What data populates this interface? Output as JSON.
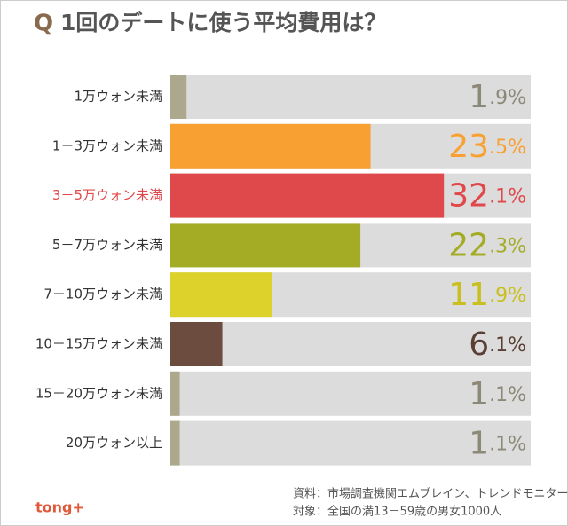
{
  "chart_data": {
    "type": "bar",
    "orientation": "horizontal",
    "title_marker": "Q",
    "title": "1回のデートに使う平均費用は？",
    "categories": [
      "1万ウォン未満",
      "1－3万ウォン未満",
      "3－5万ウォン未満",
      "5－7万ウォン未満",
      "7－10万ウォン未満",
      "10－15万ウォン未満",
      "15－20万ウォン未満",
      "20万ウォン以上"
    ],
    "values": [
      1.9,
      23.5,
      32.1,
      22.3,
      11.9,
      6.1,
      1.1,
      1.1
    ],
    "value_labels": [
      "1.9%",
      "23.5%",
      "32.1%",
      "22.3%",
      "11.9%",
      "6.1%",
      "1.1%",
      "1.1%"
    ],
    "colors": [
      "#aca88e",
      "#f9a033",
      "#e0494b",
      "#a4ac26",
      "#dcd22b",
      "#6b4c3f",
      "#aca88e",
      "#aca88e"
    ],
    "label_colors": [
      "#8c8979",
      "#f9a033",
      "#e0494b",
      "#a4ac26",
      "#c9bf1f",
      "#5a4034",
      "#8c8979",
      "#8c8979"
    ],
    "highlight_category": 2,
    "highlight_color": "#e0494b",
    "sources": [
      "資料：市場調査機関エムブレイン、トレンドモニター",
      "対象：全国の満13－59歳の男女1000人"
    ],
    "logo": "tong+"
  }
}
